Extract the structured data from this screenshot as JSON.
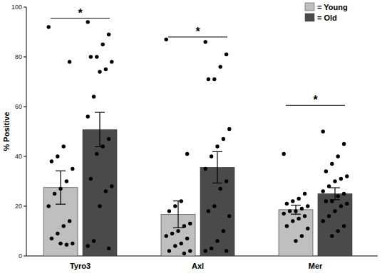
{
  "chart_data": {
    "type": "bar",
    "y_label": "% Positive",
    "categories": [
      "Tyro3",
      "Axl",
      "Mer"
    ],
    "ylim": [
      0,
      100
    ],
    "yticks": [
      0,
      20,
      40,
      60,
      80,
      100
    ],
    "grid": false,
    "legend": "top-right",
    "series": [
      {
        "name": "= Young",
        "color": "#bfbfbf",
        "values": [
          27.5,
          16.7,
          18.6
        ],
        "errors": [
          6.7,
          5.4,
          1.8
        ],
        "points": [
          [
            92,
            78,
            44,
            40,
            38,
            35,
            30,
            27,
            25,
            20,
            14,
            12,
            9,
            7,
            5,
            4.5,
            5
          ],
          [
            87,
            41,
            22,
            20,
            18,
            13,
            12,
            10,
            9,
            8,
            7,
            5,
            4,
            2,
            2,
            1
          ],
          [
            41,
            25,
            23,
            22,
            21,
            20,
            19,
            18,
            18,
            17,
            16,
            15,
            14,
            12,
            11,
            8,
            6
          ]
        ]
      },
      {
        "name": "= Old",
        "color": "#4a4a4a",
        "values": [
          50.8,
          35.6,
          25.0
        ],
        "errors": [
          6.9,
          6.3,
          2.4
        ],
        "points": [
          [
            94,
            89,
            85,
            80,
            80,
            78,
            75,
            74,
            64,
            56,
            47,
            44,
            41,
            31,
            28,
            26,
            20,
            6,
            4,
            3
          ],
          [
            86,
            81,
            76,
            71,
            71,
            51,
            47,
            44,
            40,
            35,
            30,
            27,
            20,
            18,
            16,
            10,
            6,
            3,
            2,
            2
          ],
          [
            50,
            45,
            40,
            37,
            34,
            32,
            31,
            30,
            28,
            26,
            25,
            24,
            22,
            22,
            21,
            20,
            18,
            16,
            14,
            12,
            10,
            8
          ]
        ]
      }
    ],
    "significance": [
      {
        "category": 0,
        "y": 95.5,
        "label": "*"
      },
      {
        "category": 1,
        "y": 88,
        "label": "*"
      },
      {
        "category": 2,
        "y": 60.5,
        "label": "*"
      }
    ]
  }
}
